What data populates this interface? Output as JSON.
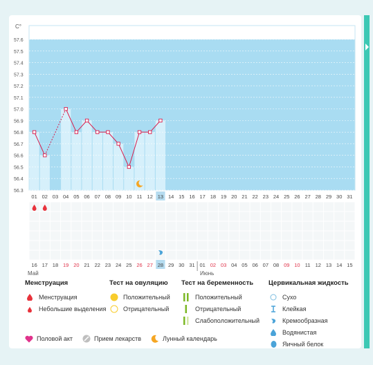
{
  "chart": {
    "unit_label": "C°",
    "y_ticks": [
      "57.6",
      "57.5",
      "57.4",
      "57.3",
      "57.2",
      "57.1",
      "57.0",
      "56.9",
      "56.8",
      "56.7",
      "56.6",
      "56.5",
      "56.4",
      "56.3"
    ],
    "cycle_days": [
      "01",
      "02",
      "03",
      "04",
      "05",
      "06",
      "07",
      "08",
      "09",
      "10",
      "11",
      "12",
      "13",
      "14",
      "15",
      "16",
      "17",
      "18",
      "19",
      "20",
      "21",
      "22",
      "23",
      "24",
      "25",
      "26",
      "27",
      "28",
      "29",
      "30",
      "31"
    ],
    "dates": [
      "16",
      "17",
      "18",
      "19",
      "20",
      "21",
      "22",
      "23",
      "24",
      "25",
      "26",
      "27",
      "28",
      "29",
      "30",
      "31",
      "01",
      "02",
      "03",
      "04",
      "05",
      "06",
      "07",
      "08",
      "09",
      "10",
      "11",
      "12",
      "13",
      "14",
      "15"
    ],
    "dates_weekend": [
      false,
      false,
      false,
      true,
      true,
      false,
      false,
      false,
      false,
      false,
      true,
      true,
      false,
      false,
      false,
      false,
      false,
      true,
      true,
      false,
      false,
      false,
      false,
      false,
      true,
      true,
      false,
      false,
      false,
      false,
      false
    ],
    "month_start": "Май",
    "month_next": "Июнь",
    "current_day_index": 12,
    "colors": {
      "recorded_bg": "#d6f0fb",
      "future_bg": "#a9dcf2",
      "line": "#d81b4a",
      "menstruation": "#e8333c",
      "current_day": "#b5dcf0",
      "moon": "#f5a623"
    }
  },
  "chart_data": {
    "type": "line",
    "xlabel": "",
    "ylabel": "C°",
    "ylim": [
      56.3,
      57.6
    ],
    "categories": [
      "01",
      "02",
      "03",
      "04",
      "05",
      "06",
      "07",
      "08",
      "09",
      "10",
      "11",
      "12",
      "13"
    ],
    "values": [
      56.8,
      56.6,
      null,
      57.0,
      56.8,
      56.9,
      56.8,
      56.8,
      56.7,
      56.5,
      56.8,
      56.8,
      56.9
    ],
    "gaps": [
      [
        1,
        3
      ]
    ]
  },
  "markers": {
    "menstruation_days": [
      0,
      1
    ],
    "moon_day": 10,
    "fluid_day": 12
  },
  "legend": {
    "menstruation": {
      "title": "Менструация",
      "items": [
        "Менструация",
        "Небольшие выделения"
      ]
    },
    "ovulation": {
      "title": "Тест на овуляцию",
      "items": [
        "Положительный",
        "Отрицательный"
      ]
    },
    "pregnancy": {
      "title": "Тест на беременность",
      "items": [
        "Положительный",
        "Отрицательный",
        "Слабоположительный"
      ]
    },
    "fluid": {
      "title": "Цервикальная жидкость",
      "items": [
        "Сухо",
        "Клейкая",
        "Кремообразная",
        "Водянистая",
        "Яичный белок"
      ]
    }
  },
  "bottom": [
    "Половой акт",
    "Прием лекарств",
    "Лунный календарь"
  ]
}
